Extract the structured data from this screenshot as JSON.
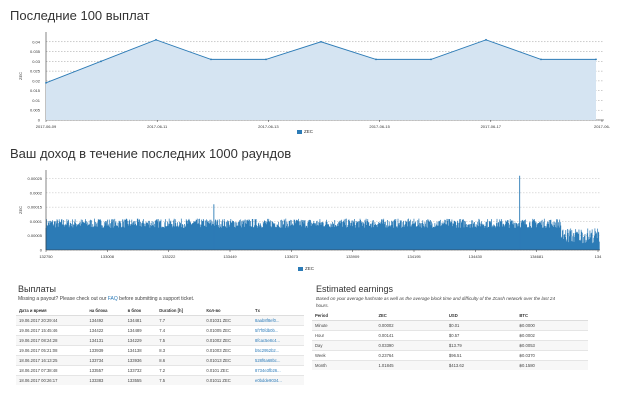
{
  "payouts_chart": {
    "title": "Последние 100 выплат",
    "legend": "ZEC",
    "color": "#2c7bb6",
    "fill": "#d5e4f2",
    "chart_data": {
      "type": "area",
      "ylabel": "ZEC",
      "ylim": [
        0.0,
        0.045
      ],
      "yticks": [
        "0.04",
        "0.035",
        "0.03",
        "0.025",
        "0.02",
        "0.015",
        "0.01",
        "0.005",
        "0"
      ],
      "ytick_values": [
        0.04,
        0.035,
        0.03,
        0.025,
        0.02,
        0.015,
        0.01,
        0.005,
        0
      ],
      "xticks": [
        "2017-06-09",
        "2017-06-11",
        "2017-06-13",
        "2017-06-15",
        "2017-06-17",
        "2017-06-"
      ],
      "x": [
        0,
        1,
        2,
        3,
        4,
        5,
        6,
        7,
        8,
        9,
        10
      ],
      "values": [
        0.019,
        0.03,
        0.041,
        0.031,
        0.031,
        0.04,
        0.031,
        0.031,
        0.041,
        0.031,
        0.031
      ]
    }
  },
  "earnings_chart": {
    "title": "Ваш доход в течение последних 1000 раундов",
    "legend": "ZEC",
    "color": "#2c7bb6",
    "chart_data": {
      "type": "bar",
      "ylabel": "ZEC",
      "ylim": [
        0,
        0.00028
      ],
      "yticks": [
        "0.00025",
        "0.0002",
        "0.00015",
        "0.0001",
        "0.00005",
        "0"
      ],
      "ytick_values": [
        0.00025,
        0.0002,
        0.00015,
        0.0001,
        5e-05,
        0
      ],
      "xticks": [
        "132750",
        "133008",
        "133222",
        "133449",
        "133673",
        "133909",
        "134195",
        "134430",
        "134681",
        "134"
      ],
      "base_low": 6e-05,
      "base_high": 0.00011,
      "spikes": [
        {
          "pos": 0.303,
          "value": 0.00016
        },
        {
          "pos": 0.855,
          "value": 0.00026
        }
      ]
    }
  },
  "payouts": {
    "title": "Выплаты",
    "note_prefix": "Missing a payout? Please check out our ",
    "note_link": "FAQ",
    "note_suffix": " before submitting a support ticket.",
    "headers": [
      "Дата и время",
      "на блока",
      "в блок",
      "Duration [h]",
      "Кол-во",
      "Tx"
    ],
    "rows": [
      [
        "19.06.2017 20:29:44",
        "134492",
        "134481",
        "7.7",
        "0.01031 ZEC",
        "8aab8f8ef0..."
      ],
      [
        "19.06.2017 15:45:46",
        "134422",
        "134489",
        "7.4",
        "0.01005 ZEC",
        "5f7f0fdb0b..."
      ],
      [
        "19.06.2017 08:24:28",
        "134131",
        "134229",
        "7.5",
        "0.01002 ZEC",
        "8fcac5e8c4..."
      ],
      [
        "19.06.2017 05:21:08",
        "133939",
        "134138",
        "8.3",
        "0.01003 ZEC",
        "b5c2952b2..."
      ],
      [
        "18.06.2017 16:13:25",
        "133734",
        "133936",
        "8.6",
        "0.01013 ZEC",
        "528f6a68bc..."
      ],
      [
        "18.06.2017 07:38:48",
        "133557",
        "133732",
        "7.2",
        "0.0101 ZEC",
        "8734e3fb26..."
      ],
      [
        "18.06.2017 00:26:17",
        "133383",
        "133555",
        "7.5",
        "0.01011 ZEC",
        "e0bdde9034..."
      ]
    ]
  },
  "estimated": {
    "title": "Estimated earnings",
    "note": "Based on your average hashrate as well as the average block time and difficulty of the Zcash network over the last 24 hours.",
    "headers": [
      "Period",
      "ZEC",
      "USD",
      "BTC"
    ],
    "rows": [
      [
        "Minute",
        "0.00002",
        "$0.01",
        "฿0.0000"
      ],
      [
        "Hour",
        "0.00141",
        "$0.57",
        "฿0.0002"
      ],
      [
        "Day",
        "0.03390",
        "$13.79",
        "฿0.0053"
      ],
      [
        "Week",
        "0.23764",
        "$96.51",
        "฿0.0370"
      ],
      [
        "Month",
        "1.01845",
        "$413.62",
        "฿0.1580"
      ]
    ]
  }
}
